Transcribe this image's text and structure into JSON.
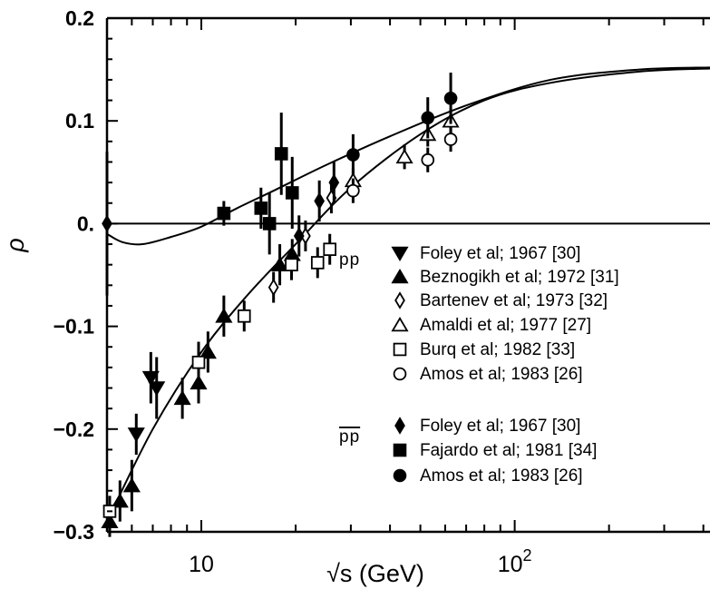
{
  "chart_data": {
    "type": "scatter",
    "title": "",
    "xlabel": "√s  (GeV)",
    "ylabel": "ρ",
    "xscale": "log",
    "xlim": [
      5,
      420
    ],
    "ylim": [
      -0.3,
      0.2
    ],
    "x_tick_labels": [
      {
        "value": 10,
        "label": "10"
      },
      {
        "value": 100,
        "label": "10",
        "sup": "2"
      }
    ],
    "y_tick_labels": [
      {
        "value": 0.2,
        "label": "0.2"
      },
      {
        "value": 0.1,
        "label": "0.1"
      },
      {
        "value": 0.0,
        "label": "0."
      },
      {
        "value": -0.1,
        "label": "−0.1"
      },
      {
        "value": -0.2,
        "label": "−0.2"
      },
      {
        "value": -0.3,
        "label": "−0.3"
      }
    ],
    "legend_groups": [
      {
        "label": "pp",
        "overline": false
      },
      {
        "label": "pp",
        "overline": true
      }
    ],
    "series": [
      {
        "name": "Foley et al; 1967 [30]",
        "group": 0,
        "marker": "triangle-down",
        "points": [
          [
            6.2,
            -0.205,
            0.02
          ],
          [
            6.9,
            -0.15,
            0.025
          ],
          [
            7.2,
            -0.16,
            0.03
          ]
        ]
      },
      {
        "name": "Beznogikh et al; 1972 [31]",
        "group": 0,
        "marker": "triangle-up",
        "points": [
          [
            5.1,
            -0.29,
            0.015
          ],
          [
            5.5,
            -0.27,
            0.02
          ],
          [
            6.0,
            -0.255,
            0.025
          ],
          [
            8.7,
            -0.17,
            0.02
          ],
          [
            9.8,
            -0.155,
            0.02
          ],
          [
            10.5,
            -0.125,
            0.02
          ],
          [
            11.8,
            -0.09,
            0.02
          ],
          [
            17.8,
            -0.04,
            0.02
          ],
          [
            19.5,
            -0.03,
            0.015
          ]
        ]
      },
      {
        "name": "Bartenev et al; 1973 [32]",
        "group": 0,
        "marker": "diamond-open",
        "points": [
          [
            17.0,
            -0.062,
            0.015
          ],
          [
            21.5,
            -0.012,
            0.015
          ],
          [
            26.0,
            0.025,
            0.015
          ]
        ]
      },
      {
        "name": "Amaldi et al; 1977 [27]",
        "group": 0,
        "marker": "triangle-open",
        "points": [
          [
            30.5,
            0.042,
            0.012
          ],
          [
            44.5,
            0.065,
            0.012
          ],
          [
            52.8,
            0.087,
            0.012
          ],
          [
            62.5,
            0.1,
            0.012
          ]
        ]
      },
      {
        "name": "Burq et al; 1982 [33]",
        "group": 0,
        "marker": "square-open",
        "points": [
          [
            5.1,
            -0.28,
            0.015
          ],
          [
            9.8,
            -0.135,
            0.02
          ],
          [
            13.7,
            -0.09,
            0.015
          ],
          [
            19.4,
            -0.04,
            0.015
          ],
          [
            23.5,
            -0.038,
            0.015
          ],
          [
            25.7,
            -0.025,
            0.015
          ]
        ]
      },
      {
        "name": "Amos et al; 1983 [26]",
        "group": 0,
        "marker": "circle-open",
        "points": [
          [
            30.5,
            0.032,
            0.012
          ],
          [
            52.8,
            0.062,
            0.012
          ],
          [
            62.5,
            0.082,
            0.012
          ]
        ]
      },
      {
        "name": "Foley et al; 1967 [30]",
        "group": 1,
        "marker": "diamond-filled",
        "points": [
          [
            5.0,
            0.0,
            0.07
          ],
          [
            20.5,
            -0.012,
            0.02
          ],
          [
            23.8,
            0.022,
            0.02
          ],
          [
            26.5,
            0.04,
            0.02
          ]
        ]
      },
      {
        "name": "Fajardo et al; 1981 [34]",
        "group": 1,
        "marker": "square-filled",
        "points": [
          [
            11.8,
            0.01,
            0.012
          ],
          [
            15.5,
            0.015,
            0.02
          ],
          [
            16.5,
            0.0,
            0.03
          ],
          [
            18.0,
            0.068,
            0.04
          ],
          [
            19.5,
            0.03,
            0.035
          ]
        ]
      },
      {
        "name": "Amos et al; 1983 [26]",
        "group": 1,
        "marker": "circle-filled",
        "points": [
          [
            30.5,
            0.067,
            0.02
          ],
          [
            52.8,
            0.103,
            0.02
          ],
          [
            62.5,
            0.122,
            0.025
          ]
        ]
      }
    ],
    "curves": [
      {
        "name": "",
        "role": "pp-fit",
        "points": [
          [
            5,
            -0.29
          ],
          [
            7,
            -0.2
          ],
          [
            10,
            -0.125
          ],
          [
            14,
            -0.07
          ],
          [
            20,
            -0.02
          ],
          [
            30,
            0.035
          ],
          [
            50,
            0.087
          ],
          [
            80,
            0.12
          ],
          [
            130,
            0.137
          ],
          [
            250,
            0.148
          ],
          [
            420,
            0.151
          ]
        ]
      },
      {
        "name": "",
        "role": "pbarp-fit",
        "points": [
          [
            5,
            -0.01
          ],
          [
            5.6,
            -0.018
          ],
          [
            6.5,
            -0.02
          ],
          [
            8,
            -0.013
          ],
          [
            10,
            -0.003
          ],
          [
            13,
            0.015
          ],
          [
            17,
            0.032
          ],
          [
            25,
            0.057
          ],
          [
            40,
            0.085
          ],
          [
            70,
            0.115
          ],
          [
            130,
            0.14
          ],
          [
            250,
            0.15
          ],
          [
            420,
            0.152
          ]
        ]
      }
    ],
    "reference_line": {
      "y": 0.0
    },
    "grid": false,
    "legend_position": "center-right"
  }
}
